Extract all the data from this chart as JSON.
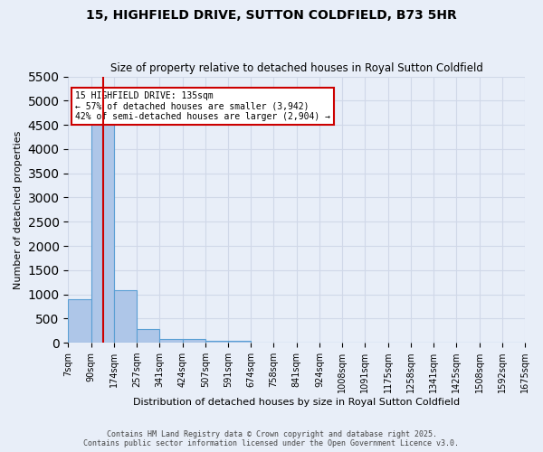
{
  "title1": "15, HIGHFIELD DRIVE, SUTTON COLDFIELD, B73 5HR",
  "title2": "Size of property relative to detached houses in Royal Sutton Coldfield",
  "xlabel": "Distribution of detached houses by size in Royal Sutton Coldfield",
  "ylabel": "Number of detached properties",
  "bar_values": [
    900,
    4550,
    1080,
    290,
    75,
    70,
    50,
    40,
    0,
    0,
    0,
    0,
    0,
    0,
    0,
    0,
    0,
    0,
    0,
    0
  ],
  "bin_labels": [
    "7sqm",
    "90sqm",
    "174sqm",
    "257sqm",
    "341sqm",
    "424sqm",
    "507sqm",
    "591sqm",
    "674sqm",
    "758sqm",
    "841sqm",
    "924sqm",
    "1008sqm",
    "1091sqm",
    "1175sqm",
    "1258sqm",
    "1341sqm",
    "1425sqm",
    "1508sqm",
    "1592sqm",
    "1675sqm"
  ],
  "bar_color": "#aec6e8",
  "bar_edge_color": "#5a9fd4",
  "annotation_text": "15 HIGHFIELD DRIVE: 135sqm\n← 57% of detached houses are smaller (3,942)\n42% of semi-detached houses are larger (2,904) →",
  "annotation_box_color": "#ffffff",
  "annotation_box_edge": "#cc0000",
  "red_line_color": "#cc0000",
  "grid_color": "#d0d8e8",
  "background_color": "#e8eef8",
  "ylim": [
    0,
    5500
  ],
  "yticks": [
    0,
    500,
    1000,
    1500,
    2000,
    2500,
    3000,
    3500,
    4000,
    4500,
    5000,
    5500
  ],
  "footer1": "Contains HM Land Registry data © Crown copyright and database right 2025.",
  "footer2": "Contains public sector information licensed under the Open Government Licence v3.0."
}
